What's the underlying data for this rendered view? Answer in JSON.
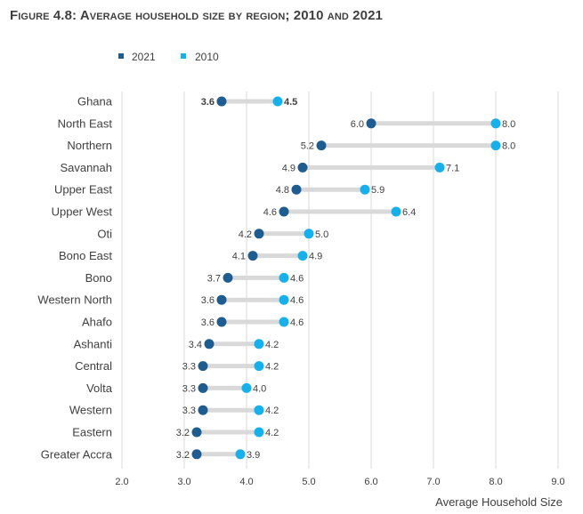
{
  "figure": {
    "title": "Figure 4.8: Average household size by region; 2010 and 2021"
  },
  "chart_data": {
    "type": "scatter",
    "subtype": "dumbbell",
    "title": "Figure 4.8: Average household size by region; 2010 and 2021",
    "xlabel": "Average Household Size",
    "ylabel": "",
    "xlim": [
      2.0,
      9.0
    ],
    "xticks": [
      "2.0",
      "3.0",
      "4.0",
      "5.0",
      "6.0",
      "7.0",
      "8.0",
      "9.0"
    ],
    "grid": "vertical",
    "legend_position": "top-left",
    "categories": [
      "Ghana",
      "North East",
      "Northern",
      "Savannah",
      "Upper East",
      "Upper West",
      "Oti",
      "Bono East",
      "Bono",
      "Western North",
      "Ahafo",
      "Ashanti",
      "Central",
      "Volta",
      "Western",
      "Eastern",
      "Greater Accra"
    ],
    "series": [
      {
        "name": "2021",
        "color": "#1f5c8f",
        "values": [
          3.6,
          6.0,
          5.2,
          4.9,
          4.8,
          4.6,
          4.2,
          4.1,
          3.7,
          3.6,
          3.6,
          3.4,
          3.3,
          3.3,
          3.3,
          3.2,
          3.2
        ]
      },
      {
        "name": "2010",
        "color": "#17b0ea",
        "values": [
          4.5,
          8.0,
          8.0,
          7.1,
          5.9,
          6.4,
          5.0,
          4.9,
          4.6,
          4.6,
          4.6,
          4.2,
          4.2,
          4.0,
          4.2,
          4.2,
          3.9
        ]
      }
    ],
    "label_text": {
      "2021": [
        "3.6",
        "6.0",
        "5.2",
        "4.9",
        "4.8",
        "4.6",
        "4.2",
        "4.1",
        "3.7",
        "3.6",
        "3.6",
        "3.4",
        "3.3",
        "3.3",
        "3.3",
        "3.2",
        "3.2"
      ],
      "2010": [
        "4.5",
        "8.0",
        "8.0",
        "7.1",
        "5.9",
        "6.4",
        "5.0",
        "4.9",
        "4.6",
        "4.6",
        "4.6",
        "4.2",
        "4.2",
        "4.0",
        "4.2",
        "4.2",
        "3.9"
      ]
    },
    "bold_categories": [
      "Ghana"
    ],
    "connector_color": "#d9d9d9",
    "grid_color": "#d9d9d9"
  }
}
